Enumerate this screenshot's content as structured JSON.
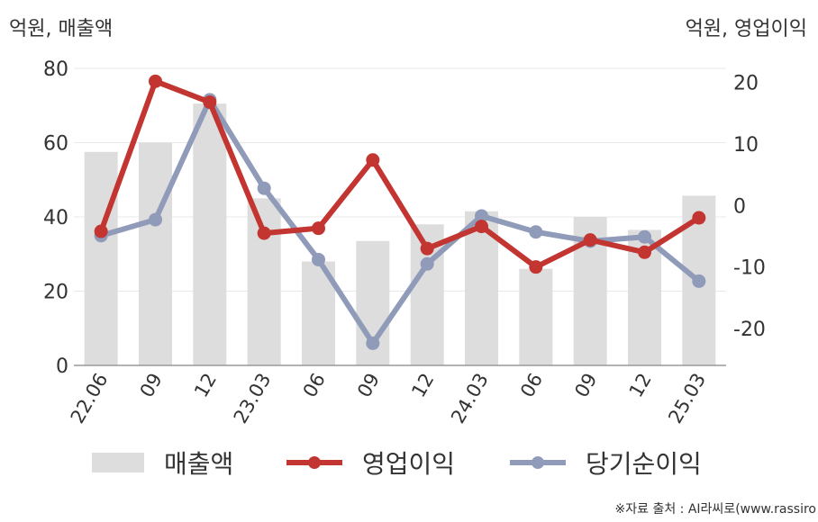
{
  "units": {
    "left": "억원, 매출액",
    "right": "억원, 영업이익"
  },
  "source": "※자료 출처 : AI라씨로(www.rassiro",
  "colors": {
    "bar": "#dddddd",
    "operating": "#c23531",
    "net": "#8f9bb8",
    "grid": "#e8e8e8",
    "axis": "#999999"
  },
  "legend": [
    {
      "label": "매출액",
      "kind": "bar"
    },
    {
      "label": "영업이익",
      "kind": "line"
    },
    {
      "label": "당기순이익",
      "kind": "line"
    }
  ],
  "chart_data": {
    "type": "bar",
    "categories": [
      "22.06",
      "09",
      "12",
      "23.03",
      "06",
      "09",
      "12",
      "24.03",
      "06",
      "09",
      "12",
      "25.03"
    ],
    "y_left": {
      "ticks": [
        0,
        20,
        40,
        60,
        80
      ],
      "ylim": [
        0,
        80
      ]
    },
    "y_right": {
      "ticks": [
        -20,
        -10,
        0,
        10,
        20
      ],
      "ylim": [
        -26,
        22.3
      ]
    },
    "series": [
      {
        "name": "매출액",
        "type": "bar",
        "axis": "left",
        "values": [
          57.5,
          60,
          70.5,
          45,
          28,
          33.5,
          38,
          41.5,
          26,
          40,
          36.5,
          45.7
        ]
      },
      {
        "name": "영업이익",
        "type": "line",
        "axis": "right",
        "values": [
          -4.2,
          20.2,
          16.8,
          -4.5,
          -3.7,
          7.4,
          -7.0,
          -3.4,
          -10.0,
          -5.6,
          -7.6,
          -2.0
        ]
      },
      {
        "name": "당기순이익",
        "type": "line",
        "axis": "right",
        "values": [
          -4.9,
          -2.3,
          17.2,
          2.8,
          -8.8,
          -22.4,
          -9.5,
          -1.7,
          -4.3,
          -5.8,
          -5.1,
          -12.3
        ]
      }
    ],
    "grid": true,
    "legend_position": "bottom"
  }
}
